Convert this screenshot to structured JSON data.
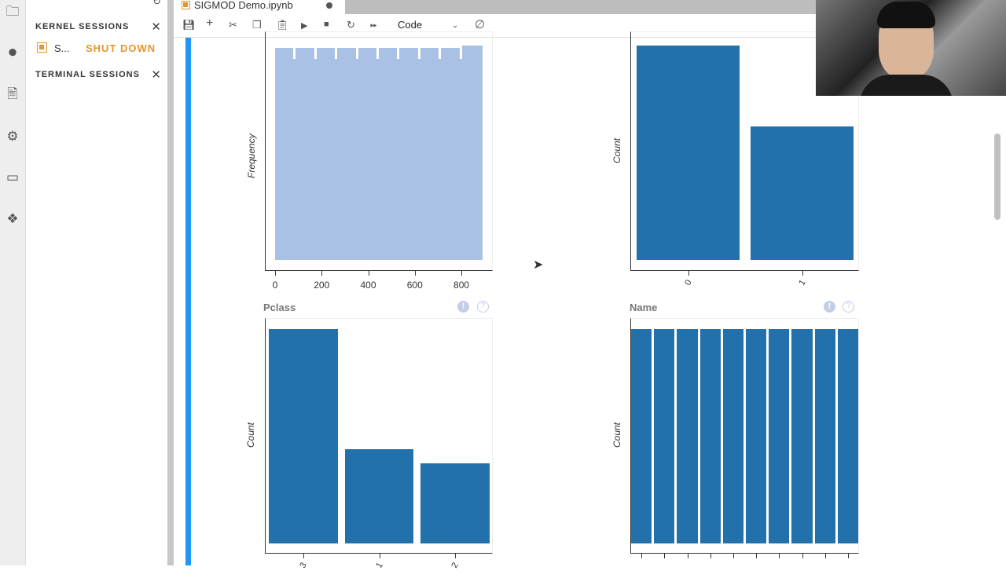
{
  "sidebar": {
    "kernel_sessions": "KERNEL SESSIONS",
    "session_name": "S...",
    "shut_down": "SHUT DOWN",
    "terminal_sessions": "TERMINAL SESSIONS"
  },
  "tab": {
    "title": "SIGMOD Demo.ipynb"
  },
  "toolbar": {
    "cell_type": "Code"
  },
  "colors": {
    "accent": "#2196f3",
    "bar": "#2271aa",
    "hist": "#a8c1e5",
    "shutdown": "#e8942c"
  },
  "chart_data": [
    {
      "type": "bar",
      "subtype": "histogram",
      "ylabel": "Frequency",
      "xticks": [
        "0",
        "200",
        "400",
        "600",
        "800"
      ],
      "xlim": [
        0,
        891
      ],
      "bins": 10,
      "values": [
        89,
        89,
        89,
        89,
        89,
        89,
        89,
        89,
        89,
        90
      ]
    },
    {
      "type": "bar",
      "ylabel": "Count",
      "categories": [
        "0",
        "1"
      ],
      "values": [
        549,
        342
      ]
    },
    {
      "type": "bar",
      "title": "Pclass",
      "ylabel": "Count",
      "categories": [
        "3",
        "1",
        "2"
      ],
      "values": [
        491,
        216,
        184
      ]
    },
    {
      "type": "bar",
      "title": "Name",
      "ylabel": "Count",
      "categories": [
        "",
        "",
        "",
        "",
        "",
        "",
        "",
        "",
        "",
        ""
      ],
      "values": [
        1,
        1,
        1,
        1,
        1,
        1,
        1,
        1,
        1,
        1
      ]
    }
  ]
}
